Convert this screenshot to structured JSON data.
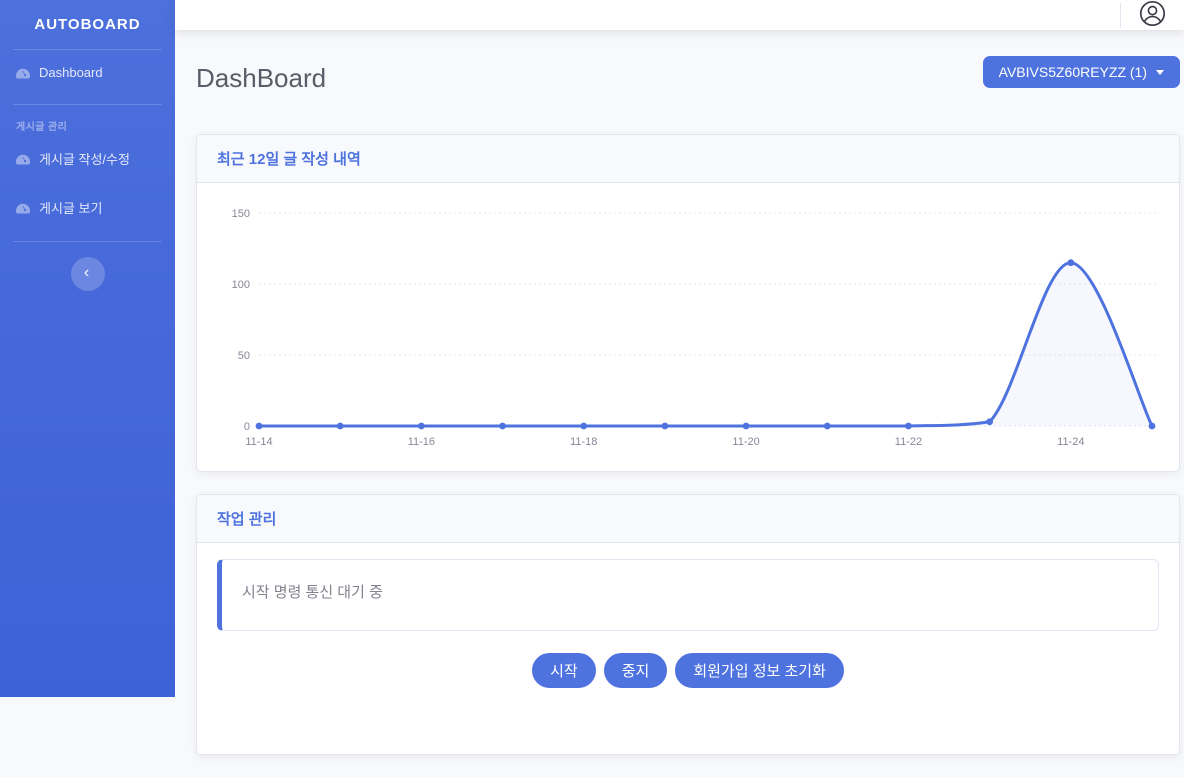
{
  "brand": {
    "name": "AUTOBOARD"
  },
  "sidebar": {
    "items": [
      {
        "label": "Dashboard",
        "icon": "tachometer-icon"
      },
      {
        "label": "게시글 작성/수정",
        "icon": "tachometer-icon"
      },
      {
        "label": "게시글 보기",
        "icon": "tachometer-icon"
      }
    ],
    "section_label": "게시글 관리",
    "collapse_icon": "chevron-left-icon",
    "collapse_glyph": "‹"
  },
  "topbar": {
    "user_icon": "user-circle-icon"
  },
  "page": {
    "title": "DashBoard"
  },
  "account_dropdown": {
    "label": "AVBIVS5Z60REYZZ (1)",
    "caret_icon": "caret-down-icon"
  },
  "cards": {
    "chart_card": {
      "title": "최근 12일 글 작성 내역"
    },
    "job_card": {
      "title": "작업 관리",
      "status_message": "시작 명령 통신 대기 중",
      "buttons": [
        {
          "label": "시작"
        },
        {
          "label": "중지"
        },
        {
          "label": "회원가입 정보 초기화"
        }
      ]
    }
  },
  "colors": {
    "primary": "#4e73df",
    "sidebar_gradient_top": "#4d70dc",
    "sidebar_gradient_bottom": "#3d62d7",
    "page_background": "#f8f9fc",
    "card_border": "#e3e6f0",
    "heading_text": "#5a5c69",
    "muted_text": "#858796"
  },
  "chart_data": {
    "type": "line",
    "title": "최근 12일 글 작성 내역",
    "categories": [
      "11-14",
      "11-15",
      "11-16",
      "11-17",
      "11-18",
      "11-19",
      "11-20",
      "11-21",
      "11-22",
      "11-23",
      "11-24",
      "11-25"
    ],
    "values": [
      0,
      0,
      0,
      0,
      0,
      0,
      0,
      0,
      0,
      3,
      115,
      0
    ],
    "label_every": 2,
    "y_ticks": [
      0,
      50,
      100,
      150
    ],
    "ylim": [
      0,
      150
    ],
    "xlabel": "",
    "ylabel": "",
    "legend": "none",
    "grid": "horizontal-dotted",
    "smooth": true,
    "line_color": "#4e73df",
    "point_color": "#4e73df",
    "fill_color": "rgba(78,115,223,0.05)"
  }
}
